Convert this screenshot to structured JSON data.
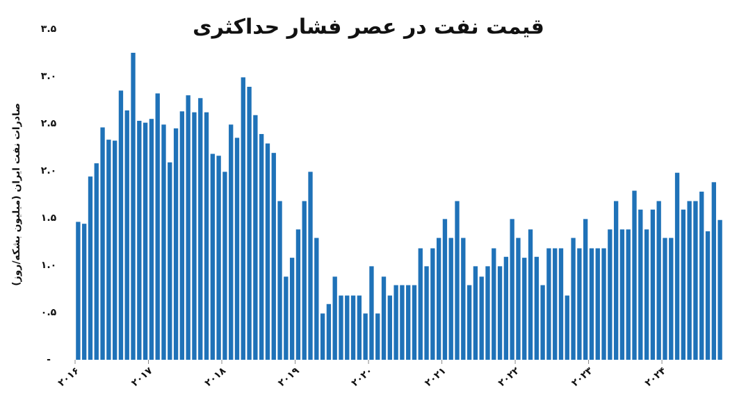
{
  "chart_data": {
    "type": "bar",
    "title": "قیمت نفت در عصر فشار حداکثری",
    "y_label": "صادرات نفت ایران (میلیون بشکه/روز)",
    "color": "#1f72b8",
    "categories": [
      "۲۰۱۶",
      null,
      null,
      null,
      null,
      null,
      null,
      null,
      null,
      null,
      null,
      null,
      "۲۰۱۷",
      null,
      null,
      null,
      null,
      null,
      null,
      null,
      null,
      null,
      null,
      null,
      "۲۰۱۸",
      null,
      null,
      null,
      null,
      null,
      null,
      null,
      null,
      null,
      null,
      null,
      "۲۰۱۹",
      null,
      null,
      null,
      null,
      null,
      null,
      null,
      null,
      null,
      null,
      null,
      "۲۰۲۰",
      null,
      null,
      null,
      null,
      null,
      null,
      null,
      null,
      null,
      null,
      null,
      "۲۰۲۱",
      null,
      null,
      null,
      null,
      null,
      null,
      null,
      null,
      null,
      null,
      null,
      "۲۰۲۲",
      null,
      null,
      null,
      null,
      null,
      null,
      null,
      null,
      null,
      null,
      null,
      "۲۰۲۳",
      null,
      null,
      null,
      null,
      null,
      null,
      null,
      null,
      null,
      null,
      null,
      "۲۰۲۴",
      null,
      null,
      null,
      null,
      null,
      null,
      null,
      null,
      null
    ],
    "values": [
      1.46,
      1.44,
      1.94,
      2.08,
      2.46,
      2.33,
      2.32,
      2.85,
      2.64,
      3.25,
      2.53,
      2.51,
      2.55,
      2.82,
      2.49,
      2.09,
      2.45,
      2.63,
      2.8,
      2.62,
      2.77,
      2.62,
      2.18,
      2.16,
      1.99,
      2.49,
      2.35,
      2.99,
      2.89,
      2.59,
      2.39,
      2.29,
      2.19,
      1.68,
      0.88,
      1.08,
      1.38,
      1.68,
      1.99,
      1.29,
      0.49,
      0.59,
      0.88,
      0.68,
      0.68,
      0.68,
      0.68,
      0.49,
      0.99,
      0.49,
      0.88,
      0.68,
      0.79,
      0.79,
      0.79,
      0.79,
      1.18,
      0.99,
      1.18,
      1.29,
      1.49,
      1.29,
      1.68,
      1.29,
      0.79,
      0.99,
      0.88,
      0.99,
      1.18,
      0.99,
      1.09,
      1.49,
      1.29,
      1.08,
      1.38,
      1.09,
      0.79,
      1.18,
      1.18,
      1.18,
      0.68,
      1.29,
      1.18,
      1.49,
      1.18,
      1.18,
      1.18,
      1.38,
      1.68,
      1.38,
      1.38,
      1.79,
      1.59,
      1.38,
      1.59,
      1.68,
      1.29,
      1.29,
      1.98,
      1.59,
      1.68,
      1.68,
      1.78,
      1.36,
      1.88,
      1.48
    ],
    "ylim": [
      0,
      3.5
    ],
    "yticks": [
      {
        "value": 0,
        "label": "-"
      },
      {
        "value": 0.5,
        "label": "۰.۵"
      },
      {
        "value": 1,
        "label": "۱.۰"
      },
      {
        "value": 1.5,
        "label": "۱.۵"
      },
      {
        "value": 2,
        "label": "۲.۰"
      },
      {
        "value": 2.5,
        "label": "۲.۵"
      },
      {
        "value": 3,
        "label": "۳.۰"
      },
      {
        "value": 3.5,
        "label": "۳.۵"
      }
    ]
  }
}
